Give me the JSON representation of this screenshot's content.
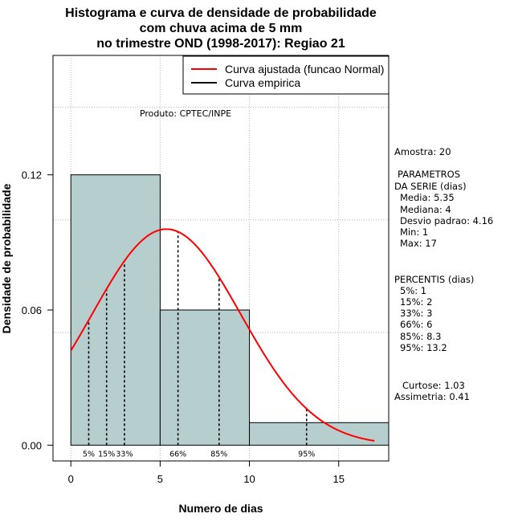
{
  "chart_data": {
    "type": "bar",
    "title_lines": [
      "Histograma e curva de densidade de probabilidade",
      "com chuva acima de 5 mm",
      "no trimestre OND (1998-2017): Regiao 21"
    ],
    "xlabel": "Numero de dias",
    "ylabel": "Densidade de probabilidade",
    "xlim": [
      -1,
      17.8
    ],
    "ylim": [
      -0.007,
      0.173
    ],
    "x_ticks": [
      0,
      5,
      10,
      15
    ],
    "y_ticks": [
      0.0,
      0.06,
      0.12
    ],
    "y_tick_labels": [
      "0.00",
      "0.06",
      "0.12"
    ],
    "grid_x": [
      0,
      5,
      10,
      15
    ],
    "grid_y": [
      0.05,
      0.1,
      0.15
    ],
    "histogram": {
      "bins": [
        [
          0,
          5
        ],
        [
          5,
          10
        ],
        [
          10,
          18
        ]
      ],
      "density": [
        0.12,
        0.06,
        0.01
      ],
      "fill": "#b7cece"
    },
    "normal_curve": {
      "mean": 5.35,
      "sd": 4.16,
      "x_start": 0,
      "x_end": 17,
      "color": "#ff0000"
    },
    "percentile_lines": [
      {
        "label": "5%",
        "x": 1
      },
      {
        "label": "15%",
        "x": 2
      },
      {
        "label": "33%",
        "x": 3
      },
      {
        "label": "66%",
        "x": 6
      },
      {
        "label": "85%",
        "x": 8.3
      },
      {
        "label": "95%",
        "x": 13.2
      }
    ],
    "legend": {
      "position": "top-right",
      "entries": [
        {
          "label": "Curva ajustada (funcao Normal)",
          "color": "#ff0000"
        },
        {
          "label": "Curva empirica",
          "color": "#000000"
        }
      ]
    },
    "annotation": "Produto: CPTEC/INPE"
  },
  "side_panel": {
    "sample": "Amostra: 20",
    "params_title_1": "PARAMETROS",
    "params_title_2": "DA SERIE (dias)",
    "params": [
      "Media: 5.35",
      "Mediana: 4",
      "Desvio padrao: 4.16",
      "Min: 1",
      "Max: 17"
    ],
    "percentis_title": "PERCENTIS (dias)",
    "percentis": [
      "5%: 1",
      "15%: 2",
      "33%: 3",
      "66%: 6",
      "85%: 8.3",
      "95%: 13.2"
    ],
    "curtose": "Curtose: 1.03",
    "assimetria": "Assimetria: 0.41"
  }
}
